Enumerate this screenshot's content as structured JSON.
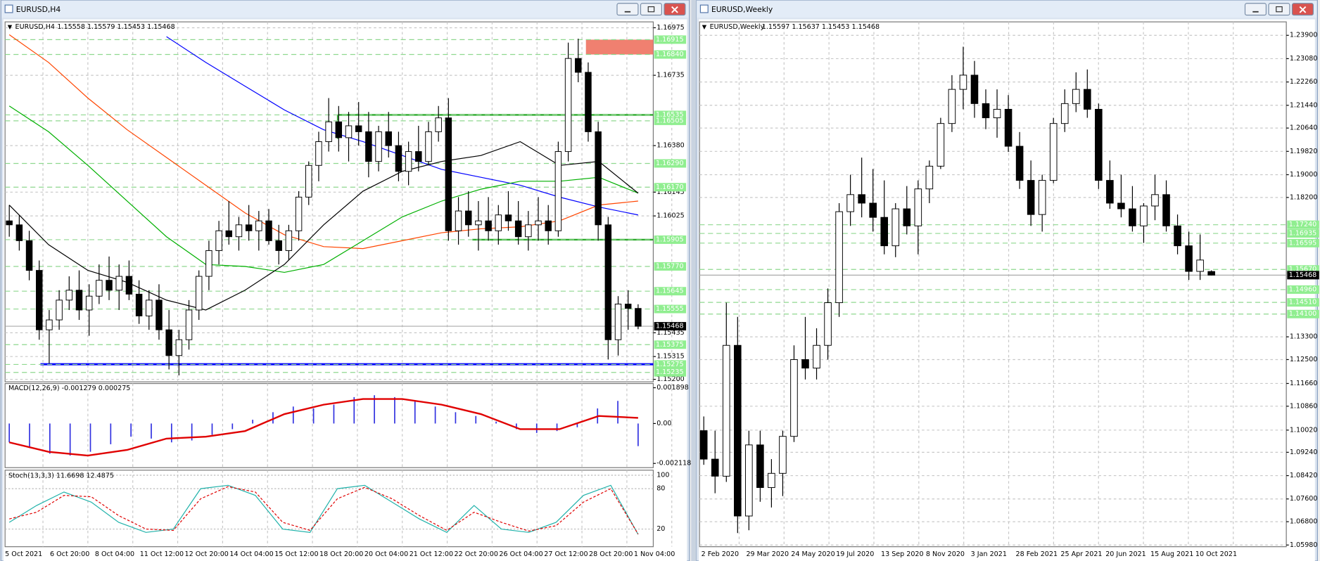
{
  "windows": [
    {
      "title": "EURUSD,H4",
      "symbol": "EURUSD,H4",
      "ohlc": "1.15558 1.15579 1.15453 1.15468",
      "ylim": [
        1.152,
        1.16975
      ],
      "yticks": [
        1.16975,
        1.16735,
        {
          "value": 1.1638,
          "label": "1.16380"
        },
        1.16145,
        1.16025,
        1.15435,
        1.15315,
        {
          "value": 1.152,
          "label": "1.15200"
        }
      ],
      "levels": [
        1.16915,
        {
          "value": 1.1684,
          "label": "1.16840"
        },
        1.16535,
        1.16505,
        {
          "value": 1.1629,
          "label": "1.16290"
        },
        {
          "value": 1.1617,
          "label": "1.16170"
        },
        1.15905,
        {
          "value": 1.1577,
          "label": "1.15770"
        },
        1.15645,
        1.15555,
        1.15375,
        1.15275,
        1.15235
      ],
      "current": 1.15468,
      "resistance_zone": [
        1.1684,
        1.16915
      ],
      "support_line": 1.15276,
      "range_box": [
        1.15905,
        1.16535
      ],
      "candles": [
        [
          1.16,
          1.1608,
          1.1592,
          1.1598
        ],
        [
          1.1598,
          1.1603,
          1.1585,
          1.159
        ],
        [
          1.159,
          1.1595,
          1.157,
          1.1575
        ],
        [
          1.1575,
          1.158,
          1.154,
          1.1545
        ],
        [
          1.1545,
          1.1555,
          1.1528,
          1.155
        ],
        [
          1.155,
          1.1565,
          1.1545,
          1.156
        ],
        [
          1.156,
          1.1572,
          1.1555,
          1.1565
        ],
        [
          1.1565,
          1.1575,
          1.155,
          1.1555
        ],
        [
          1.1555,
          1.1568,
          1.1542,
          1.1562
        ],
        [
          1.1562,
          1.1578,
          1.1558,
          1.157
        ],
        [
          1.157,
          1.1582,
          1.156,
          1.1565
        ],
        [
          1.1565,
          1.1578,
          1.1555,
          1.1572
        ],
        [
          1.1572,
          1.158,
          1.156,
          1.1563
        ],
        [
          1.1563,
          1.157,
          1.1548,
          1.1552
        ],
        [
          1.1552,
          1.1565,
          1.1545,
          1.156
        ],
        [
          1.156,
          1.1568,
          1.154,
          1.1545
        ],
        [
          1.1545,
          1.1555,
          1.1525,
          1.1532
        ],
        [
          1.1532,
          1.1545,
          1.1522,
          1.154
        ],
        [
          1.154,
          1.156,
          1.1535,
          1.1555
        ],
        [
          1.1555,
          1.1575,
          1.155,
          1.1572
        ],
        [
          1.1572,
          1.159,
          1.1565,
          1.1585
        ],
        [
          1.1585,
          1.16,
          1.1578,
          1.1595
        ],
        [
          1.1595,
          1.161,
          1.1588,
          1.1592
        ],
        [
          1.1592,
          1.1602,
          1.1585,
          1.1598
        ],
        [
          1.1598,
          1.1608,
          1.159,
          1.1595
        ],
        [
          1.1595,
          1.1605,
          1.1585,
          1.16
        ],
        [
          1.16,
          1.1606,
          1.1588,
          1.159
        ],
        [
          1.159,
          1.1598,
          1.1578,
          1.1585
        ],
        [
          1.1585,
          1.1598,
          1.158,
          1.1595
        ],
        [
          1.1595,
          1.1615,
          1.159,
          1.1612
        ],
        [
          1.1612,
          1.163,
          1.1608,
          1.1628
        ],
        [
          1.1628,
          1.1645,
          1.162,
          1.164
        ],
        [
          1.164,
          1.1662,
          1.1635,
          1.165
        ],
        [
          1.165,
          1.1658,
          1.1635,
          1.1642
        ],
        [
          1.1642,
          1.1655,
          1.163,
          1.1648
        ],
        [
          1.1648,
          1.166,
          1.1638,
          1.1645
        ],
        [
          1.1645,
          1.1655,
          1.1622,
          1.163
        ],
        [
          1.163,
          1.1648,
          1.1625,
          1.1645
        ],
        [
          1.1645,
          1.1655,
          1.1632,
          1.1638
        ],
        [
          1.1638,
          1.1645,
          1.162,
          1.1625
        ],
        [
          1.1625,
          1.164,
          1.1618,
          1.1635
        ],
        [
          1.1635,
          1.1648,
          1.1625,
          1.163
        ],
        [
          1.163,
          1.165,
          1.1628,
          1.1645
        ],
        [
          1.1645,
          1.1658,
          1.164,
          1.1652
        ],
        [
          1.1652,
          1.1662,
          1.159,
          1.1595
        ],
        [
          1.1595,
          1.1612,
          1.1588,
          1.1605
        ],
        [
          1.1605,
          1.1615,
          1.1592,
          1.1598
        ],
        [
          1.1598,
          1.161,
          1.1585,
          1.16
        ],
        [
          1.16,
          1.1612,
          1.159,
          1.1595
        ],
        [
          1.1595,
          1.1608,
          1.1588,
          1.1603
        ],
        [
          1.1603,
          1.1615,
          1.1595,
          1.16
        ],
        [
          1.16,
          1.161,
          1.1588,
          1.1592
        ],
        [
          1.1592,
          1.1605,
          1.1585,
          1.1598
        ],
        [
          1.1598,
          1.1612,
          1.159,
          1.16
        ],
        [
          1.16,
          1.1608,
          1.1588,
          1.1595
        ],
        [
          1.1595,
          1.164,
          1.1592,
          1.1635
        ],
        [
          1.1635,
          1.169,
          1.163,
          1.1682
        ],
        [
          1.1682,
          1.1692,
          1.167,
          1.1675
        ],
        [
          1.1675,
          1.168,
          1.164,
          1.1645
        ],
        [
          1.1645,
          1.165,
          1.159,
          1.1598
        ],
        [
          1.1598,
          1.1602,
          1.153,
          1.154
        ],
        [
          1.154,
          1.1562,
          1.1532,
          1.1558
        ],
        [
          1.1558,
          1.1565,
          1.1545,
          1.15558
        ],
        [
          1.15558,
          1.15579,
          1.15453,
          1.15468
        ]
      ],
      "moving_averages": [
        {
          "color": "#0000ff",
          "values": [
            null,
            null,
            null,
            null,
            1.1693,
            1.168,
            1.1668,
            1.1656,
            1.1646,
            1.164,
            1.1633,
            1.1626,
            1.1622,
            1.1618,
            1.1612,
            1.1607,
            1.1603
          ]
        },
        {
          "color": "#ff4500",
          "values": [
            1.1694,
            1.168,
            1.1662,
            1.1646,
            1.1632,
            1.1618,
            1.1604,
            1.1593,
            1.1587,
            1.1586,
            1.159,
            1.1594,
            1.1596,
            1.1597,
            1.16,
            1.1608,
            1.161
          ]
        },
        {
          "color": "#00b000",
          "values": [
            1.1658,
            1.1645,
            1.1628,
            1.161,
            1.1592,
            1.1578,
            1.1577,
            1.1574,
            1.1578,
            1.159,
            1.1602,
            1.161,
            1.1616,
            1.162,
            1.162,
            1.1622,
            1.1614
          ]
        },
        {
          "color": "#000000",
          "values": [
            1.1608,
            1.1588,
            1.1575,
            1.1569,
            1.156,
            1.1555,
            1.1565,
            1.1578,
            1.1598,
            1.1615,
            1.1625,
            1.163,
            1.1633,
            1.164,
            1.1628,
            1.163,
            1.1614
          ]
        }
      ],
      "xlabels": [
        "5 Oct 2021",
        "6 Oct 20:00",
        "8 Oct 04:00",
        "11 Oct 12:00",
        "12 Oct 20:00",
        "14 Oct 04:00",
        "15 Oct 12:00",
        "18 Oct 20:00",
        "20 Oct 04:00",
        "21 Oct 12:00",
        "22 Oct 20:00",
        "26 Oct 04:00",
        "27 Oct 12:00",
        "28 Oct 20:00",
        "1 Nov 04:00"
      ],
      "macd": {
        "label": "MACD(12,26,9) -0.001279 0.000275",
        "ylim": [
          -0.002118,
          0.001898
        ],
        "yticks": [
          0.001898,
          {
            "value": 0,
            "label": "0.00"
          },
          -0.002118
        ],
        "histogram": [
          -0.001,
          -0.0013,
          -0.0016,
          -0.0017,
          -0.0015,
          -0.0011,
          -0.0007,
          -0.0008,
          -0.001,
          -0.0009,
          -0.0006,
          -0.0003,
          0.0002,
          0.0006,
          0.0009,
          0.0008,
          0.001,
          0.0014,
          0.0015,
          0.0014,
          0.0012,
          0.0009,
          0.0006,
          0.0004,
          0.0001,
          -0.0003,
          -0.0005,
          -0.0004,
          -0.0002,
          0.0008,
          0.0012,
          -0.0012
        ],
        "signal": [
          -0.001,
          -0.0015,
          -0.0017,
          -0.0014,
          -0.0008,
          -0.0007,
          -0.0004,
          0.0005,
          0.001,
          0.0013,
          0.0013,
          0.001,
          0.0005,
          -0.0003,
          -0.0003,
          0.0004,
          0.0003
        ]
      },
      "stoch": {
        "label": "Stoch(13,3,3) 11.6698 12.4875",
        "ylim": [
          0,
          100
        ],
        "yticks": [
          100,
          80,
          20
        ],
        "main": [
          30,
          55,
          75,
          60,
          30,
          15,
          20,
          80,
          85,
          70,
          20,
          15,
          80,
          85,
          60,
          35,
          15,
          55,
          20,
          15,
          30,
          70,
          85,
          12
        ],
        "signal": [
          35,
          45,
          70,
          68,
          40,
          20,
          18,
          65,
          83,
          75,
          30,
          18,
          65,
          82,
          65,
          40,
          18,
          45,
          30,
          17,
          25,
          60,
          80,
          12.5
        ]
      }
    },
    {
      "title": "EURUSD,Weekly",
      "symbol": "EURUSD,Weekly",
      "ohlc": "1.15597 1.15637 1.15453 1.15468",
      "ylim": [
        1.0598,
        1.239
      ],
      "yticks": [
        {
          "value": 1.239,
          "label": "1.23900"
        },
        {
          "value": 1.2308,
          "label": "1.23080"
        },
        {
          "value": 1.2226,
          "label": "1.22260"
        },
        {
          "value": 1.2144,
          "label": "1.21440"
        },
        {
          "value": 1.2064,
          "label": "1.20640"
        },
        {
          "value": 1.1982,
          "label": "1.19820"
        },
        {
          "value": 1.19,
          "label": "1.19000"
        },
        {
          "value": 1.182,
          "label": "1.18200"
        },
        {
          "value": 1.133,
          "label": "1.13300"
        },
        {
          "value": 1.125,
          "label": "1.12500"
        },
        {
          "value": 1.1166,
          "label": "1.11660"
        },
        {
          "value": 1.1086,
          "label": "1.10860"
        },
        {
          "value": 1.1002,
          "label": "1.10020"
        },
        {
          "value": 1.0924,
          "label": "1.09240"
        },
        {
          "value": 1.0842,
          "label": "1.08420"
        },
        {
          "value": 1.076,
          "label": "1.07600"
        },
        {
          "value": 1.068,
          "label": "1.06800"
        },
        {
          "value": 1.0598,
          "label": "1.05980"
        }
      ],
      "levels": [
        {
          "value": 1.1724,
          "label": "1.17240"
        },
        1.16935,
        1.16595,
        {
          "value": 1.1567,
          "label": "1.15670"
        },
        {
          "value": 1.1496,
          "label": "1.14960"
        },
        {
          "value": 1.1451,
          "label": "1.14510"
        },
        {
          "value": 1.141,
          "label": "1.14100"
        }
      ],
      "current": 1.15468,
      "candles": [
        [
          1.1,
          1.105,
          1.088,
          1.09
        ],
        [
          1.09,
          1.1,
          1.078,
          1.084
        ],
        [
          1.084,
          1.145,
          1.082,
          1.13
        ],
        [
          1.13,
          1.14,
          1.064,
          1.07
        ],
        [
          1.07,
          1.1,
          1.065,
          1.095
        ],
        [
          1.095,
          1.1,
          1.075,
          1.08
        ],
        [
          1.08,
          1.09,
          1.073,
          1.085
        ],
        [
          1.085,
          1.1,
          1.077,
          1.098
        ],
        [
          1.098,
          1.13,
          1.096,
          1.125
        ],
        [
          1.125,
          1.14,
          1.118,
          1.122
        ],
        [
          1.122,
          1.136,
          1.118,
          1.13
        ],
        [
          1.13,
          1.15,
          1.125,
          1.145
        ],
        [
          1.145,
          1.18,
          1.14,
          1.177
        ],
        [
          1.177,
          1.19,
          1.172,
          1.183
        ],
        [
          1.183,
          1.196,
          1.175,
          1.18
        ],
        [
          1.18,
          1.192,
          1.17,
          1.175
        ],
        [
          1.175,
          1.188,
          1.162,
          1.165
        ],
        [
          1.165,
          1.18,
          1.161,
          1.178
        ],
        [
          1.178,
          1.186,
          1.169,
          1.172
        ],
        [
          1.172,
          1.188,
          1.162,
          1.185
        ],
        [
          1.185,
          1.195,
          1.18,
          1.193
        ],
        [
          1.193,
          1.21,
          1.192,
          1.208
        ],
        [
          1.208,
          1.225,
          1.205,
          1.22
        ],
        [
          1.22,
          1.235,
          1.213,
          1.225
        ],
        [
          1.225,
          1.23,
          1.21,
          1.215
        ],
        [
          1.215,
          1.22,
          1.206,
          1.21
        ],
        [
          1.21,
          1.22,
          1.203,
          1.213
        ],
        [
          1.213,
          1.218,
          1.198,
          1.2
        ],
        [
          1.2,
          1.205,
          1.185,
          1.188
        ],
        [
          1.188,
          1.195,
          1.172,
          1.176
        ],
        [
          1.176,
          1.19,
          1.17,
          1.188
        ],
        [
          1.188,
          1.21,
          1.187,
          1.208
        ],
        [
          1.208,
          1.22,
          1.205,
          1.215
        ],
        [
          1.215,
          1.226,
          1.212,
          1.22
        ],
        [
          1.22,
          1.227,
          1.21,
          1.213
        ],
        [
          1.213,
          1.215,
          1.185,
          1.188
        ],
        [
          1.188,
          1.195,
          1.178,
          1.18
        ],
        [
          1.18,
          1.19,
          1.175,
          1.178
        ],
        [
          1.178,
          1.186,
          1.17,
          1.172
        ],
        [
          1.172,
          1.18,
          1.166,
          1.179
        ],
        [
          1.179,
          1.19,
          1.174,
          1.183
        ],
        [
          1.183,
          1.188,
          1.17,
          1.172
        ],
        [
          1.172,
          1.176,
          1.162,
          1.165
        ],
        [
          1.165,
          1.17,
          1.153,
          1.156
        ],
        [
          1.156,
          1.169,
          1.153,
          1.16
        ],
        [
          1.15597,
          1.15637,
          1.15453,
          1.15468
        ]
      ],
      "xlabels": [
        "2 Feb 2020",
        "29 Mar 2020",
        "24 May 2020",
        "19 Jul 2020",
        "13 Sep 2020",
        "8 Nov 2020",
        "3 Jan 2021",
        "28 Feb 2021",
        "25 Apr 2021",
        "20 Jun 2021",
        "15 Aug 2021",
        "10 Oct 2021"
      ]
    }
  ]
}
